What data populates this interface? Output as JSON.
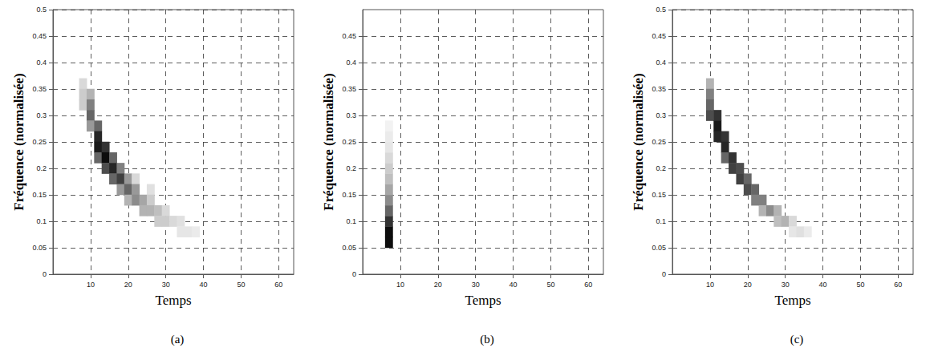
{
  "chart_data": [
    {
      "type": "heatmap",
      "caption": "(a)",
      "x_label": "Temps",
      "y_label": "Fréquence (normalisée)",
      "xlim": [
        0,
        64
      ],
      "xticks": [
        10,
        20,
        30,
        40,
        50,
        60
      ],
      "ylim": [
        0,
        0.5
      ],
      "yticks": [
        0,
        0.05,
        0.1,
        0.15,
        0.2,
        0.25,
        0.3,
        0.35,
        0.4,
        0.45,
        0.5
      ],
      "grid": true,
      "cell_width": 2,
      "cell_height": 0.02,
      "intensity_range": [
        0,
        1
      ],
      "cells": [
        [
          8,
          0.36,
          0.15
        ],
        [
          8,
          0.34,
          0.2
        ],
        [
          8,
          0.32,
          0.2
        ],
        [
          10,
          0.34,
          0.3
        ],
        [
          10,
          0.32,
          0.5
        ],
        [
          10,
          0.3,
          0.6
        ],
        [
          10,
          0.28,
          0.4
        ],
        [
          12,
          0.28,
          0.6
        ],
        [
          12,
          0.26,
          0.85
        ],
        [
          12,
          0.24,
          0.9
        ],
        [
          12,
          0.22,
          0.6
        ],
        [
          14,
          0.24,
          0.8
        ],
        [
          14,
          0.22,
          0.95
        ],
        [
          14,
          0.2,
          0.7
        ],
        [
          16,
          0.22,
          0.6
        ],
        [
          16,
          0.2,
          0.85
        ],
        [
          16,
          0.18,
          0.6
        ],
        [
          18,
          0.2,
          0.5
        ],
        [
          18,
          0.18,
          0.75
        ],
        [
          18,
          0.16,
          0.4
        ],
        [
          20,
          0.18,
          0.4
        ],
        [
          20,
          0.16,
          0.6
        ],
        [
          20,
          0.14,
          0.3
        ],
        [
          22,
          0.18,
          0.15
        ],
        [
          22,
          0.16,
          0.4
        ],
        [
          22,
          0.14,
          0.45
        ],
        [
          24,
          0.14,
          0.35
        ],
        [
          24,
          0.12,
          0.3
        ],
        [
          26,
          0.16,
          0.12
        ],
        [
          26,
          0.14,
          0.2
        ],
        [
          26,
          0.12,
          0.3
        ],
        [
          28,
          0.12,
          0.25
        ],
        [
          28,
          0.1,
          0.2
        ],
        [
          30,
          0.12,
          0.15
        ],
        [
          30,
          0.1,
          0.2
        ],
        [
          32,
          0.1,
          0.15
        ],
        [
          34,
          0.1,
          0.12
        ],
        [
          34,
          0.08,
          0.1
        ],
        [
          36,
          0.08,
          0.1
        ],
        [
          38,
          0.08,
          0.08
        ]
      ]
    },
    {
      "type": "heatmap",
      "caption": "(b)",
      "x_label": "Temps",
      "y_label": "Fréquence (normalisée)",
      "xlim": [
        0,
        64
      ],
      "xticks": [
        10,
        20,
        30,
        40,
        50,
        60
      ],
      "ylim": [
        0,
        0.5
      ],
      "yticks": [
        0,
        0.05,
        0.1,
        0.15,
        0.2,
        0.25,
        0.3,
        0.35,
        0.4,
        0.45
      ],
      "grid": true,
      "cell_width": 2,
      "cell_height": 0.02,
      "intensity_range": [
        0,
        1
      ],
      "cells": [
        [
          7,
          0.06,
          0.95
        ],
        [
          7,
          0.08,
          0.95
        ],
        [
          7,
          0.1,
          0.8
        ],
        [
          7,
          0.12,
          0.6
        ],
        [
          7,
          0.14,
          0.45
        ],
        [
          7,
          0.16,
          0.35
        ],
        [
          7,
          0.18,
          0.25
        ],
        [
          7,
          0.2,
          0.2
        ],
        [
          7,
          0.22,
          0.15
        ],
        [
          7,
          0.24,
          0.1
        ],
        [
          7,
          0.26,
          0.08
        ],
        [
          7,
          0.28,
          0.05
        ]
      ]
    },
    {
      "type": "heatmap",
      "caption": "(c)",
      "x_label": "Temps",
      "y_label": "Fréquence (normalisée)",
      "xlim": [
        0,
        64
      ],
      "xticks": [
        10,
        20,
        30,
        40,
        50,
        60
      ],
      "ylim": [
        0,
        0.5
      ],
      "yticks": [
        0,
        0.05,
        0.1,
        0.15,
        0.2,
        0.25,
        0.3,
        0.35,
        0.4,
        0.45,
        0.5
      ],
      "grid": true,
      "cell_width": 2,
      "cell_height": 0.02,
      "intensity_range": [
        0,
        1
      ],
      "cells": [
        [
          10,
          0.36,
          0.3
        ],
        [
          10,
          0.34,
          0.5
        ],
        [
          10,
          0.32,
          0.6
        ],
        [
          10,
          0.3,
          0.7
        ],
        [
          12,
          0.3,
          0.8
        ],
        [
          12,
          0.28,
          0.9
        ],
        [
          12,
          0.26,
          0.85
        ],
        [
          14,
          0.26,
          0.8
        ],
        [
          14,
          0.24,
          0.85
        ],
        [
          14,
          0.22,
          0.6
        ],
        [
          16,
          0.22,
          0.8
        ],
        [
          16,
          0.2,
          0.75
        ],
        [
          18,
          0.2,
          0.7
        ],
        [
          18,
          0.18,
          0.75
        ],
        [
          20,
          0.18,
          0.6
        ],
        [
          20,
          0.16,
          0.7
        ],
        [
          22,
          0.16,
          0.6
        ],
        [
          22,
          0.14,
          0.5
        ],
        [
          24,
          0.14,
          0.5
        ],
        [
          24,
          0.12,
          0.3
        ],
        [
          26,
          0.12,
          0.45
        ],
        [
          28,
          0.12,
          0.3
        ],
        [
          28,
          0.1,
          0.25
        ],
        [
          30,
          0.1,
          0.3
        ],
        [
          32,
          0.1,
          0.15
        ],
        [
          32,
          0.08,
          0.1
        ],
        [
          34,
          0.08,
          0.12
        ],
        [
          36,
          0.08,
          0.08
        ]
      ]
    }
  ]
}
